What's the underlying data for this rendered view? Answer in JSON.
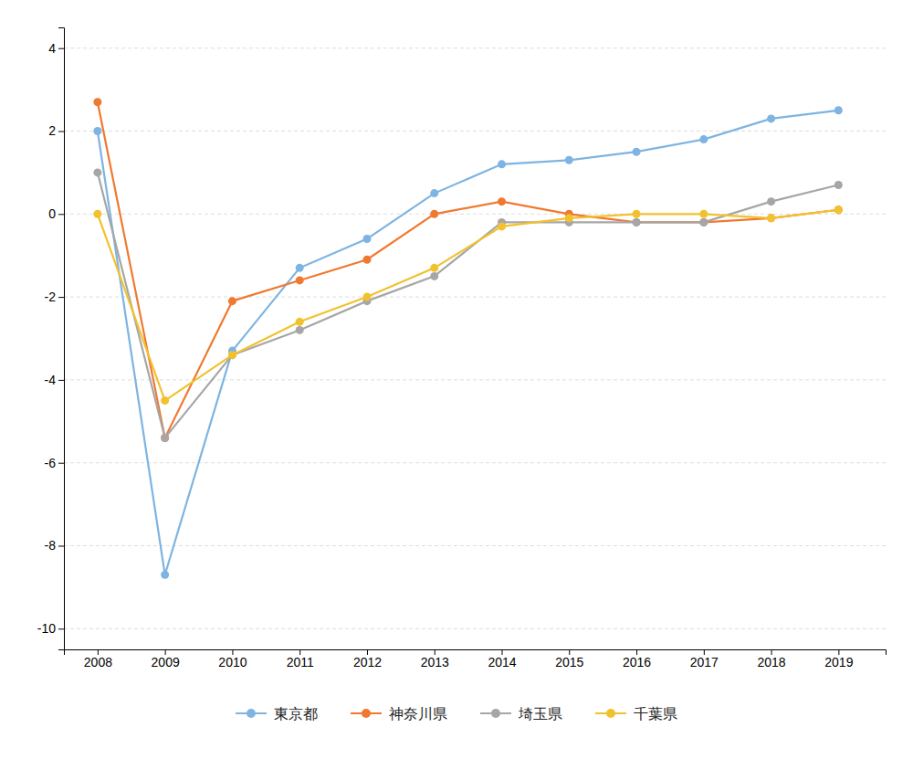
{
  "chart_data": {
    "type": "line",
    "x": [
      2008,
      2009,
      2010,
      2011,
      2012,
      2013,
      2014,
      2015,
      2016,
      2017,
      2018,
      2019
    ],
    "series": [
      {
        "name": "東京都",
        "color": "#7EB4E2",
        "values": [
          2.0,
          -8.7,
          -3.3,
          -1.3,
          -0.6,
          0.5,
          1.2,
          1.3,
          1.5,
          1.8,
          2.3,
          2.5
        ]
      },
      {
        "name": "神奈川県",
        "color": "#F07930",
        "values": [
          2.7,
          -5.4,
          -2.1,
          -1.6,
          -1.1,
          0.0,
          0.3,
          0.0,
          -0.2,
          -0.2,
          -0.1,
          0.1
        ]
      },
      {
        "name": "埼玉県",
        "color": "#A6A6A6",
        "values": [
          1.0,
          -5.4,
          -3.4,
          -2.8,
          -2.1,
          -1.5,
          -0.2,
          -0.2,
          -0.2,
          -0.2,
          0.3,
          0.7
        ]
      },
      {
        "name": "千葉県",
        "color": "#F2C12E",
        "values": [
          0.0,
          -4.5,
          -3.4,
          -2.6,
          -2.0,
          -1.3,
          -0.3,
          -0.1,
          0.0,
          0.0,
          -0.1,
          0.1
        ]
      }
    ],
    "xlim": [
      2007.5,
      2019.7
    ],
    "xticks": [
      2008,
      2009,
      2010,
      2011,
      2012,
      2013,
      2014,
      2015,
      2016,
      2017,
      2018,
      2019
    ],
    "ylim": [
      -10.5,
      4.5
    ],
    "yticks": [
      -10,
      -8,
      -6,
      -4,
      -2,
      0,
      2,
      4
    ],
    "grid": true,
    "legend": "bottom",
    "marker": "circle"
  }
}
